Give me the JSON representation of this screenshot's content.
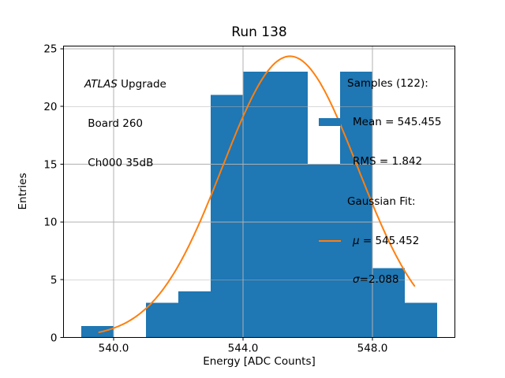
{
  "chart_data": {
    "type": "histogram",
    "title": "Run 138",
    "xlabel": "Energy [ADC Counts]",
    "ylabel": "Entries",
    "xlim": [
      538.45,
      550.55
    ],
    "ylim": [
      0,
      25.23
    ],
    "xticks": [
      540.0,
      544.0,
      548.0
    ],
    "xtick_labels": [
      "540.0",
      "544.0",
      "548.0"
    ],
    "yticks": [
      0,
      5,
      10,
      15,
      20,
      25
    ],
    "ytick_labels": [
      "0",
      "5",
      "10",
      "15",
      "20",
      "25"
    ],
    "grid": true,
    "legend_position": "upper right",
    "colors": {
      "histogram": "#1f77b4",
      "gaussian_fit": "#ff7f0e",
      "grid": "#b0b0b0",
      "text": "#000000",
      "spine": "#000000"
    },
    "histogram": {
      "label": "Samples",
      "n_samples": 122,
      "mean": 545.455,
      "rms": 1.842,
      "bin_edges": [
        539,
        540,
        541,
        542,
        543,
        544,
        545,
        546,
        547,
        548,
        549,
        550
      ],
      "counts": [
        1,
        0,
        3,
        4,
        21,
        23,
        23,
        15,
        23,
        6,
        3
      ]
    },
    "gaussian_fit": {
      "label": "Gaussian Fit",
      "mu": 545.452,
      "sigma": 2.088,
      "amplitude": 24.35,
      "x_range": [
        539.55,
        549.3
      ]
    }
  },
  "annotations": {
    "atlas_italic": "ATLAS",
    "atlas_rest": " Upgrade",
    "line2": " Board 260",
    "line3": " Ch000 35dB"
  },
  "legend": {
    "samples_header": "Samples (122):",
    "mean_label": "Mean = 545.455",
    "rms_label": "RMS = 1.842",
    "fit_header": "Gaussian Fit:",
    "mu_symbol": "μ",
    "mu_value": " = 545.452",
    "sigma_symbol": "σ",
    "sigma_value": "=2.088"
  }
}
